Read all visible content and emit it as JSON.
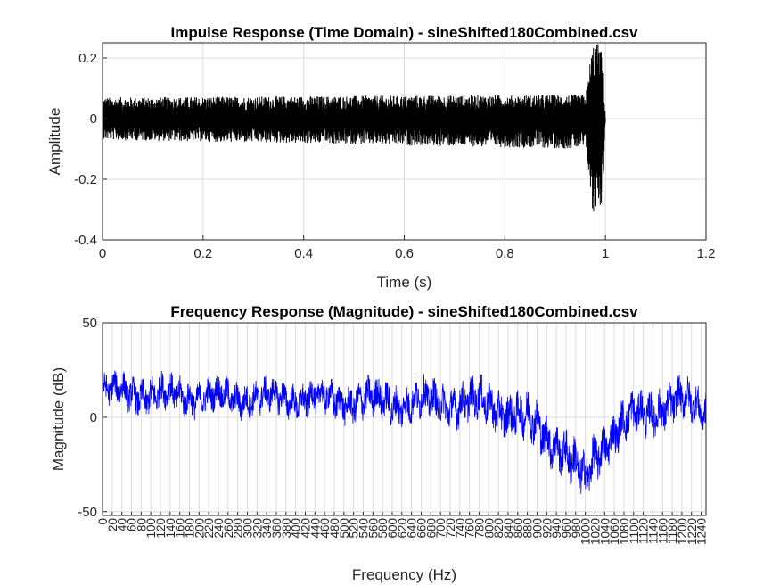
{
  "chart_data": [
    {
      "type": "line",
      "title": "Impulse Response (Time Domain) - sineShifted180Combined.csv",
      "xlabel": "Time (s)",
      "ylabel": "Amplitude",
      "xlim": [
        0,
        1.2
      ],
      "ylim": [
        -0.4,
        0.25
      ],
      "xticks": [
        0,
        0.2,
        0.4,
        0.6,
        0.8,
        1,
        1.2
      ],
      "xtick_labels": [
        "0",
        "0.2",
        "0.4",
        "0.6",
        "0.8",
        "1",
        "1.2"
      ],
      "yticks": [
        0.2,
        0,
        -0.2,
        -0.4
      ],
      "ytick_labels": [
        "0.2",
        "0",
        "-0.2",
        "-0.4"
      ],
      "grid": true,
      "line_color": "#000000",
      "series": [
        {
          "x": [
            0,
            0.96,
            0.965,
            0.97,
            0.975,
            0.98,
            0.985,
            0.99,
            0.995,
            1.0
          ],
          "upper": [
            0.07,
            0.08,
            0.12,
            0.2,
            0.25,
            0.25,
            0.25,
            0.24,
            0.2,
            0
          ],
          "lower": [
            -0.07,
            -0.1,
            -0.15,
            -0.25,
            -0.34,
            -0.3,
            -0.27,
            -0.3,
            -0.26,
            0
          ]
        }
      ]
    },
    {
      "type": "line",
      "title": "Frequency Response (Magnitude) - sineShifted180Combined.csv",
      "xlabel": "Frequency (Hz)",
      "ylabel": "Magnitude (dB)",
      "xlim": [
        0,
        1250
      ],
      "ylim": [
        -52,
        50
      ],
      "x_tick_step": 20,
      "x_tick_max": 1240,
      "yticks": [
        50,
        0,
        -50
      ],
      "ytick_labels": [
        "50",
        "0",
        "-50"
      ],
      "grid": true,
      "line_color": "#0000ff",
      "series": [
        {
          "x": [
            0,
            100,
            200,
            300,
            400,
            500,
            600,
            700,
            800,
            850,
            900,
            950,
            980,
            1000,
            1020,
            1050,
            1100,
            1150,
            1200,
            1250
          ],
          "mean": [
            14,
            12,
            11,
            10,
            10,
            9,
            8,
            8,
            7,
            2,
            -5,
            -15,
            -28,
            -35,
            -20,
            -10,
            0,
            5,
            8,
            5
          ],
          "spread": [
            9,
            11,
            10,
            10,
            10,
            11,
            12,
            12,
            13,
            14,
            14,
            14,
            15,
            14,
            14,
            13,
            13,
            13,
            12,
            12
          ]
        }
      ]
    }
  ]
}
